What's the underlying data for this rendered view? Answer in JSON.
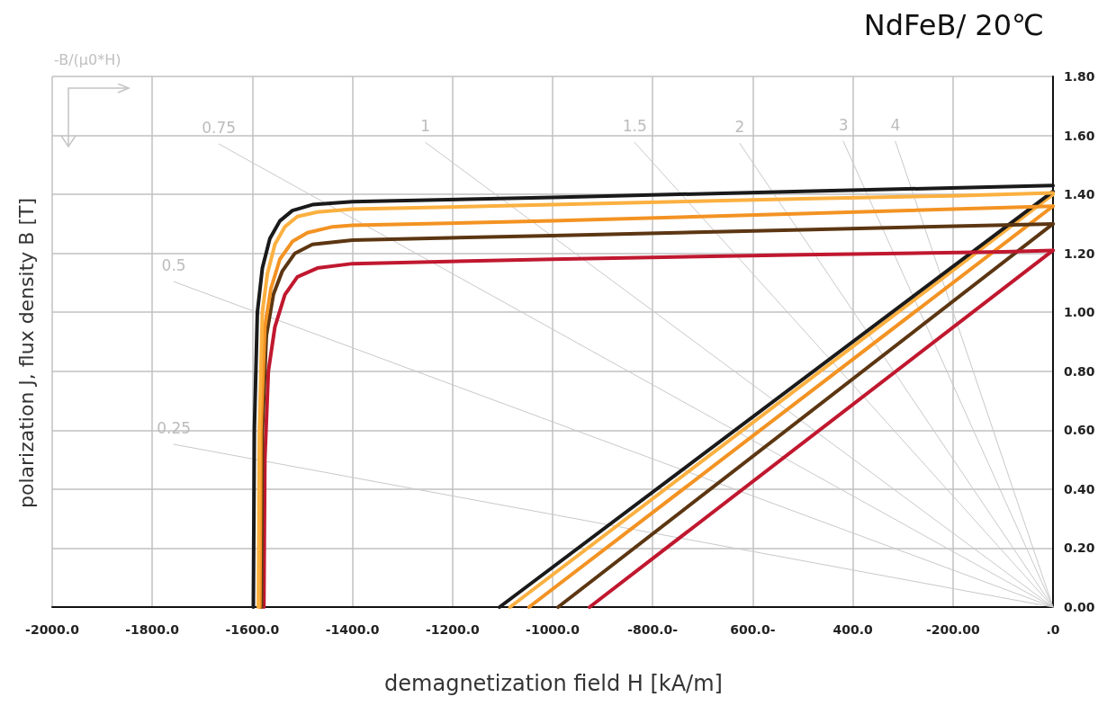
{
  "chart_data": {
    "type": "line",
    "title": "NdFeB/ 20℃",
    "xlabel": "demagnetization field H [kA/m]",
    "ylabel": "polarization J, flux density B [T]",
    "annotations": [
      "-B/(μ0*H)"
    ],
    "xlim": [
      -2000,
      0
    ],
    "xticks": [
      {
        "value": -2000,
        "label": "-2000.0"
      },
      {
        "value": -1800,
        "label": "-1800.0"
      },
      {
        "value": -1600,
        "label": "-1600.0"
      },
      {
        "value": -1400,
        "label": "-1400.0"
      },
      {
        "value": -1200,
        "label": "-1200.0"
      },
      {
        "value": -1000,
        "label": "-1000.0"
      },
      {
        "value": -800,
        "label": "-800.0-"
      },
      {
        "value": -600,
        "label": "600.0-"
      },
      {
        "value": -400,
        "label": "400.0"
      },
      {
        "value": -200,
        "label": "-200.00"
      },
      {
        "value": 0,
        "label": ".0"
      }
    ],
    "ylim": [
      0,
      1.8
    ],
    "yticks": [
      {
        "value": 0,
        "label": "0.00"
      },
      {
        "value": 0.2,
        "label": "0.20"
      },
      {
        "value": 0.4,
        "label": "0.40"
      },
      {
        "value": 0.6,
        "label": "0.60"
      },
      {
        "value": 0.8,
        "label": "0.80"
      },
      {
        "value": 1,
        "label": "1.00"
      },
      {
        "value": 1.2,
        "label": "1.20"
      },
      {
        "value": 1.4,
        "label": "1.40"
      },
      {
        "value": 1.6,
        "label": "1.60"
      },
      {
        "value": 1.8,
        "label": "1.80"
      }
    ],
    "grid": true,
    "marker": "none",
    "line_style": "solid",
    "series": [
      {
        "name": "0.25",
        "color": "#c8c8c8",
        "x": [
          -1757,
          0
        ],
        "values": [
          0.552,
          0
        ]
      },
      {
        "name": "0.5",
        "color": "#c8c8c8",
        "x": [
          -1757,
          0
        ],
        "values": [
          1.104,
          0
        ]
      },
      {
        "name": "0.75",
        "color": "#c8c8c8",
        "x": [
          -1667,
          0
        ],
        "values": [
          1.571,
          0
        ]
      },
      {
        "name": "1",
        "color": "#c8c8c8",
        "x": [
          -1254,
          0
        ],
        "values": [
          1.576,
          0
        ]
      },
      {
        "name": "1.5",
        "color": "#c8c8c8",
        "x": [
          -836,
          0
        ],
        "values": [
          1.576,
          0
        ]
      },
      {
        "name": "2",
        "color": "#c8c8c8",
        "x": [
          -626,
          0
        ],
        "values": [
          1.573,
          0
        ]
      },
      {
        "name": "3",
        "color": "#c8c8c8",
        "x": [
          -419,
          0
        ],
        "values": [
          1.58,
          0
        ]
      },
      {
        "name": "4",
        "color": "#c8c8c8",
        "x": [
          -315,
          0
        ],
        "values": [
          1.58,
          0
        ]
      },
      {
        "color": "#c0182f",
        "x": [
          -926,
          0
        ],
        "values": [
          0,
          1.21
        ]
      },
      {
        "color": "#5c3612",
        "x": [
          -989,
          0
        ],
        "values": [
          0,
          1.3
        ]
      },
      {
        "color": "#f39323",
        "x": [
          -1047,
          0
        ],
        "values": [
          0,
          1.36
        ]
      },
      {
        "color": "#fbb040",
        "x": [
          -1085,
          0
        ],
        "values": [
          0,
          1.4
        ]
      },
      {
        "color": "#1a1a1a",
        "x": [
          -1106,
          0
        ],
        "values": [
          0,
          1.41
        ]
      },
      {
        "color": "#c0182f",
        "x": [
          -1577,
          -1575,
          -1568,
          -1555,
          -1535,
          -1510,
          -1470,
          -1400,
          -1000,
          -500,
          -100,
          0
        ],
        "values": [
          0,
          0.5,
          0.8,
          0.95,
          1.06,
          1.12,
          1.15,
          1.165,
          1.18,
          1.195,
          1.205,
          1.21
        ]
      },
      {
        "color": "#5c3612",
        "x": [
          -1582,
          -1580,
          -1572,
          -1558,
          -1540,
          -1515,
          -1480,
          -1400,
          -1000,
          -500,
          0
        ],
        "values": [
          0,
          0.6,
          0.92,
          1.06,
          1.14,
          1.2,
          1.23,
          1.245,
          1.26,
          1.28,
          1.3
        ]
      },
      {
        "color": "#f39323",
        "x": [
          -1585,
          -1583,
          -1575,
          -1563,
          -1545,
          -1520,
          -1490,
          -1440,
          -1400,
          -1000,
          -500,
          0
        ],
        "values": [
          0,
          0.6,
          0.95,
          1.08,
          1.18,
          1.24,
          1.27,
          1.29,
          1.295,
          1.31,
          1.335,
          1.36
        ]
      },
      {
        "color": "#fbb040",
        "x": [
          -1588,
          -1586,
          -1580,
          -1570,
          -1555,
          -1535,
          -1510,
          -1470,
          -1400,
          -1000,
          -500,
          -200,
          0
        ],
        "values": [
          0,
          0.6,
          1,
          1.13,
          1.23,
          1.29,
          1.325,
          1.34,
          1.35,
          1.365,
          1.385,
          1.395,
          1.405
        ]
      },
      {
        "color": "#1a1a1a",
        "x": [
          -1598,
          -1596,
          -1590,
          -1580,
          -1565,
          -1545,
          -1520,
          -1480,
          -1400,
          -1000,
          -500,
          0
        ],
        "values": [
          0,
          0.6,
          1,
          1.15,
          1.25,
          1.31,
          1.345,
          1.365,
          1.375,
          1.39,
          1.41,
          1.43
        ]
      }
    ]
  }
}
